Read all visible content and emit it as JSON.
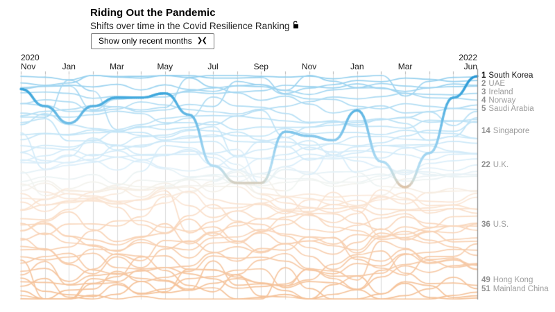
{
  "header": {
    "title": "Riding Out the Pandemic",
    "subtitle": "Shifts over time in the Covid Resilience Ranking",
    "subtitle_icon": "lock-icon",
    "button_label": "Show only recent months",
    "button_icon_glyph": "❯❮"
  },
  "chart_data": {
    "type": "bump",
    "title": "Riding Out the Pandemic",
    "subtitle": "Shifts over time in the Covid Resilience Ranking",
    "months": [
      "Nov 2020",
      "Dec 2020",
      "Jan 2021",
      "Feb 2021",
      "Mar 2021",
      "Apr 2021",
      "May 2021",
      "Jun 2021",
      "Jul 2021",
      "Aug 2021",
      "Sep 2021",
      "Oct 2021",
      "Nov 2021",
      "Dec 2021",
      "Jan 2022",
      "Feb 2022",
      "Mar 2022",
      "Apr 2022",
      "May 2022",
      "Jun 2022"
    ],
    "axis_labels": [
      {
        "index": 0,
        "month": "Nov",
        "year": "2020"
      },
      {
        "index": 2,
        "month": "Jan"
      },
      {
        "index": 4,
        "month": "Mar"
      },
      {
        "index": 6,
        "month": "May"
      },
      {
        "index": 8,
        "month": "Jul"
      },
      {
        "index": 10,
        "month": "Sep"
      },
      {
        "index": 12,
        "month": "Nov"
      },
      {
        "index": 14,
        "month": "Jan"
      },
      {
        "index": 16,
        "month": "Mar"
      },
      {
        "index": 19,
        "month": "Jun",
        "year": "2022"
      }
    ],
    "total_ranked": 53,
    "rank_axis_range": [
      1,
      53
    ],
    "grid": true,
    "highlighted_series": {
      "name": "South Korea",
      "ranks": [
        4,
        8,
        12,
        8,
        6,
        6,
        5,
        10,
        22,
        26,
        26,
        14,
        15,
        16,
        9,
        21,
        27,
        19,
        6,
        1
      ]
    },
    "final_standings": [
      {
        "rank": 1,
        "country": "South Korea",
        "highlighted": true
      },
      {
        "rank": 2,
        "country": "UAE"
      },
      {
        "rank": 3,
        "country": "Ireland"
      },
      {
        "rank": 4,
        "country": "Norway"
      },
      {
        "rank": 5,
        "country": "Saudi Arabia"
      },
      {
        "rank": 14,
        "country": "Singapore"
      },
      {
        "rank": 22,
        "country": "U.K."
      },
      {
        "rank": 36,
        "country": "U.S."
      },
      {
        "rank": 49,
        "country": "Hong Kong"
      },
      {
        "rank": 51,
        "country": "Mainland China"
      }
    ],
    "background_line_count": 52,
    "colors": {
      "highlight_blue": "#3ea7dc",
      "highlight_low_tan": "#e5b88f",
      "background_blue": "#a9d9f2",
      "background_orange": "#f6c9a6",
      "gridline": "#d8d8d8",
      "axis_line": "#8c8c8c",
      "label_gray": "#9d9d9d"
    }
  }
}
